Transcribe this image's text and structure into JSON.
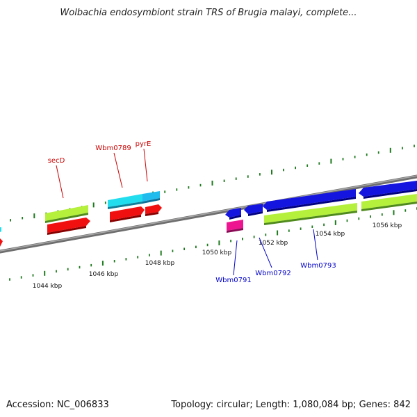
{
  "title": "Wolbachia endosymbiont strain TRS of Brugia malayi, complete...",
  "footer": {
    "accession": "Accession: NC_006833",
    "stats": "Topology: circular; Length: 1,080,084 bp; Genes: 842"
  },
  "colors": {
    "background": "#ffffff",
    "backbone": "#8a8a8a",
    "tick_minor": "#1e7a1e",
    "tick_major": "#1e7a1e",
    "forward_label": "#cc0000",
    "reverse_label": "#0000cc"
  },
  "ticks": [
    {
      "label": "1044 kbp"
    },
    {
      "label": "1046 kbp"
    },
    {
      "label": "1048 kbp"
    },
    {
      "label": "1050 kbp"
    },
    {
      "label": "1052 kbp"
    },
    {
      "label": "1054 kbp"
    },
    {
      "label": "1056 kbp"
    }
  ],
  "gene_labels": [
    {
      "text": "secD",
      "strand": "forward"
    },
    {
      "text": "Wbm0789",
      "strand": "forward"
    },
    {
      "text": "pyrE",
      "strand": "forward"
    },
    {
      "text": "Wbm0791",
      "strand": "reverse"
    },
    {
      "text": "Wbm0792",
      "strand": "reverse"
    },
    {
      "text": "Wbm0793",
      "strand": "reverse"
    }
  ],
  "features": [
    {
      "name": "feature-lime-1",
      "color": "#b5f03c"
    },
    {
      "name": "feature-red-1",
      "color": "#f01010"
    },
    {
      "name": "feature-cyan-1",
      "color": "#22ddee"
    },
    {
      "name": "feature-red-2",
      "color": "#f01010"
    },
    {
      "name": "feature-cyan-2",
      "color": "#22bbee"
    },
    {
      "name": "feature-red-3",
      "color": "#f01010"
    },
    {
      "name": "feature-blue-1",
      "color": "#1515e0"
    },
    {
      "name": "feature-magenta-1",
      "color": "#ee1590"
    },
    {
      "name": "feature-blue-2",
      "color": "#1515e0"
    },
    {
      "name": "feature-blue-3",
      "color": "#1515e0"
    },
    {
      "name": "feature-lime-2",
      "color": "#b5f03c"
    },
    {
      "name": "feature-blue-4",
      "color": "#1515e0"
    },
    {
      "name": "feature-lime-3",
      "color": "#b5f03c"
    },
    {
      "name": "feature-red-edge",
      "color": "#f01010"
    },
    {
      "name": "feature-cyan-edge",
      "color": "#22ddee"
    }
  ]
}
